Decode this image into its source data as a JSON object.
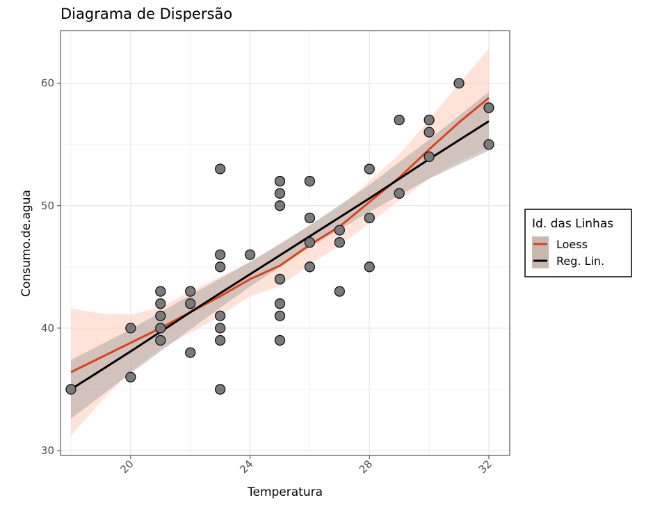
{
  "chart_data": {
    "type": "scatter",
    "title": "Diagrama de Dispersão",
    "xlabel": "Temperatura",
    "ylabel": "Consumo.de.agua",
    "xlim": [
      17.65,
      32.7
    ],
    "ylim": [
      29.6,
      64.3
    ],
    "xticks": [
      20,
      24,
      28,
      32
    ],
    "yticks": [
      30,
      40,
      50,
      60
    ],
    "xminor": [
      18,
      22,
      26,
      30
    ],
    "yminor": [
      35,
      45,
      55
    ],
    "grid": true,
    "points": [
      [
        18,
        35
      ],
      [
        20,
        40
      ],
      [
        20,
        36
      ],
      [
        21,
        43
      ],
      [
        21,
        42
      ],
      [
        21,
        41
      ],
      [
        21,
        40
      ],
      [
        21,
        39
      ],
      [
        22,
        43
      ],
      [
        22,
        42
      ],
      [
        22,
        38
      ],
      [
        23,
        53
      ],
      [
        23,
        46
      ],
      [
        23,
        45
      ],
      [
        23,
        41
      ],
      [
        23,
        40
      ],
      [
        23,
        39
      ],
      [
        23,
        35
      ],
      [
        24,
        46
      ],
      [
        25,
        52
      ],
      [
        25,
        51
      ],
      [
        25,
        50
      ],
      [
        25,
        44
      ],
      [
        25,
        42
      ],
      [
        25,
        41
      ],
      [
        25,
        39
      ],
      [
        26,
        52
      ],
      [
        26,
        49
      ],
      [
        26,
        47
      ],
      [
        26,
        45
      ],
      [
        27,
        48
      ],
      [
        27,
        47
      ],
      [
        27,
        43
      ],
      [
        28,
        53
      ],
      [
        28,
        49
      ],
      [
        28,
        45
      ],
      [
        29,
        57
      ],
      [
        29,
        51
      ],
      [
        30,
        57
      ],
      [
        30,
        56
      ],
      [
        30,
        54
      ],
      [
        31,
        60
      ],
      [
        32,
        58
      ],
      [
        32,
        55
      ]
    ],
    "lines": [
      {
        "name": "Loess",
        "color": "#e0401a",
        "band_color": "#ffccb8",
        "x": [
          18,
          19,
          20,
          21,
          22,
          23,
          24,
          25,
          26,
          27,
          28,
          29,
          30,
          31,
          32
        ],
        "y": [
          36.4,
          37.6,
          38.8,
          40.0,
          41.3,
          42.6,
          44.0,
          45.1,
          46.8,
          48.3,
          50.3,
          52.3,
          54.6,
          56.8,
          58.8
        ],
        "lower": [
          31.2,
          34.0,
          36.5,
          38.3,
          39.6,
          41.0,
          42.6,
          43.4,
          45.2,
          46.7,
          48.6,
          50.4,
          52.2,
          53.6,
          54.8
        ],
        "upper": [
          41.6,
          41.2,
          41.1,
          41.7,
          43.0,
          44.2,
          45.4,
          46.8,
          48.4,
          49.9,
          52.0,
          54.2,
          57.0,
          60.0,
          62.8
        ]
      },
      {
        "name": "Reg. Lin.",
        "color": "#000000",
        "band_color": "#999999",
        "x": [
          18,
          20,
          22,
          24,
          26,
          28,
          30,
          32
        ],
        "y": [
          35.0,
          38.1,
          41.3,
          44.4,
          47.5,
          50.6,
          53.8,
          56.9
        ],
        "lower": [
          32.6,
          36.3,
          39.9,
          43.4,
          46.6,
          49.5,
          52.2,
          54.5
        ],
        "upper": [
          37.4,
          39.9,
          42.7,
          45.4,
          48.4,
          51.7,
          55.4,
          59.3
        ]
      }
    ],
    "legend": {
      "title": "Id. das Linhas",
      "placement": "right"
    }
  }
}
